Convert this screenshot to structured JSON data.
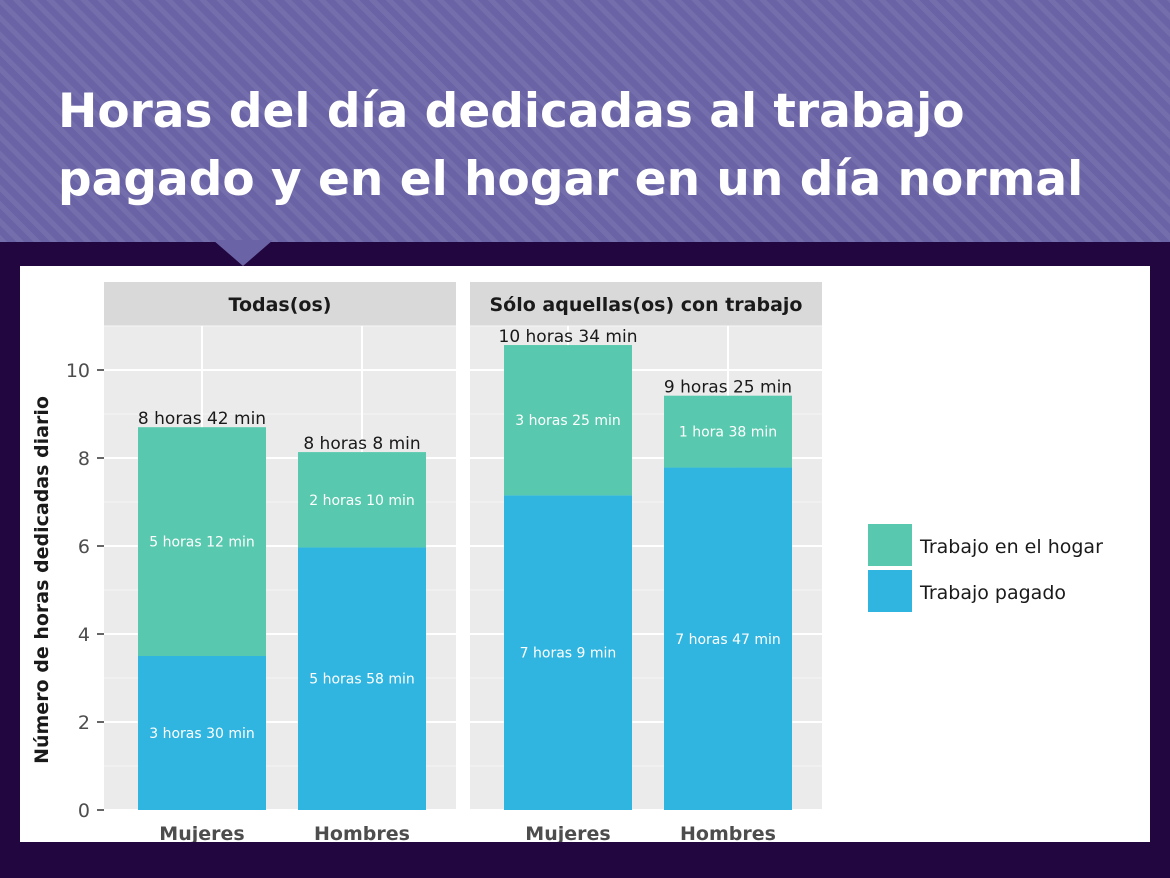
{
  "title_line1": "Horas del día dedicadas al trabajo",
  "title_line2": "pagado y en el hogar en un día normal",
  "colors": {
    "home": "#58c9ae",
    "paid": "#2fb5e0",
    "facet_strip": "#d9d9d9",
    "panel_bg": "#ebebeb"
  },
  "chart_data": {
    "type": "bar",
    "stacked": true,
    "ylabel": "Número de horas dedicadas diario",
    "ylim": [
      0,
      11
    ],
    "yticks": [
      0,
      2,
      4,
      6,
      8,
      10
    ],
    "categories": [
      "Mujeres",
      "Hombres"
    ],
    "legend": {
      "position": "right",
      "entries": [
        "Trabajo en el hogar",
        "Trabajo pagado"
      ]
    },
    "facets": [
      {
        "name": "Todas(os)",
        "series": [
          {
            "name": "Trabajo pagado",
            "values": [
              3.5,
              5.967
            ],
            "labels": [
              "3 horas 30 min",
              "5 horas 58 min"
            ]
          },
          {
            "name": "Trabajo en el hogar",
            "values": [
              5.2,
              2.167
            ],
            "labels": [
              "5 horas 12 min",
              "2 horas 10 min"
            ]
          }
        ],
        "totals": [
          8.7,
          8.133
        ],
        "total_labels": [
          "8 horas 42 min",
          "8 horas 8 min"
        ]
      },
      {
        "name": "Sólo aquellas(os) con trabajo",
        "series": [
          {
            "name": "Trabajo pagado",
            "values": [
              7.15,
              7.783
            ],
            "labels": [
              "7 horas 9 min",
              "7 horas 47 min"
            ]
          },
          {
            "name": "Trabajo en el hogar",
            "values": [
              3.417,
              1.633
            ],
            "labels": [
              "3 horas 25 min",
              "1 hora 38 min"
            ]
          }
        ],
        "totals": [
          10.567,
          9.417
        ],
        "total_labels": [
          "10 horas 34 min",
          "9 horas 25 min"
        ]
      }
    ]
  }
}
